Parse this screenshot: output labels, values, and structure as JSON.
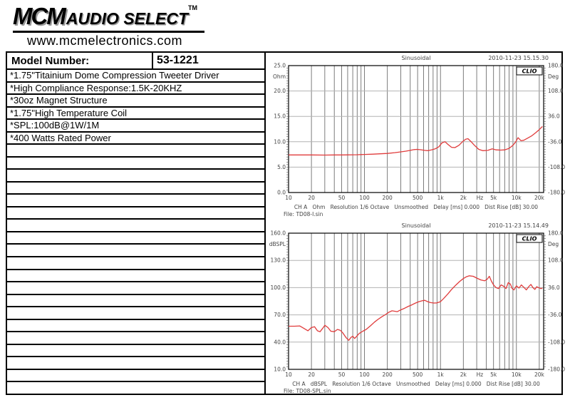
{
  "header": {
    "brand": "MCM",
    "brand_suffix": "AUDIO SELECT",
    "trademark": "TM",
    "website": "www.mcmelectronics.com"
  },
  "table": {
    "header": {
      "label": "Model Number:",
      "value": "53-1221"
    },
    "specs": [
      "*1.75\"Titainium Dome Compression Tweeter Driver",
      "*High Compliance Response:1.5K-20KHZ",
      "*30oz Magnet Structure",
      "*1.75\"High Temperature Coil",
      "*SPL:100dB@1W/1M",
      "*400 Watts Rated Power"
    ],
    "empty_row_count": 20
  },
  "chart_data": [
    {
      "id": "impedance",
      "type": "line",
      "title": "Sinusoidal",
      "timestamp": "2010-11-23 15.15.30",
      "badge": "CLIO",
      "grid": true,
      "curve_color": "#e03c3c",
      "y_left": {
        "unit": "Ohm",
        "min": 0,
        "max": 25,
        "ticks": [
          {
            "v": 25,
            "label": "25.0"
          },
          {
            "v": 20,
            "label": "20.0"
          },
          {
            "v": 15,
            "label": "15.0"
          },
          {
            "v": 10,
            "label": "10.0"
          },
          {
            "v": 5,
            "label": "5.0"
          },
          {
            "v": 0,
            "label": "0.0"
          }
        ]
      },
      "y_right": {
        "unit": "Deg",
        "ticks": [
          {
            "v": 180,
            "label": "180.0"
          },
          {
            "v": 108,
            "label": "108.0"
          },
          {
            "v": 36,
            "label": "36.0"
          },
          {
            "v": -36,
            "label": "-36.0"
          },
          {
            "v": -108,
            "label": "-108.0"
          },
          {
            "v": -180,
            "label": "-180.0"
          }
        ]
      },
      "x": {
        "scale": "log",
        "min": 10,
        "max": 22800,
        "unit": "Hz",
        "unit_position": 3300,
        "tick_values": [
          10,
          20,
          50,
          100,
          200,
          500,
          1000,
          2000,
          5000,
          10000,
          20000
        ],
        "tick_labels": [
          "10",
          "20",
          "50",
          "100",
          "200",
          "500",
          "1k",
          "2k",
          "5k",
          "10k",
          "20k"
        ]
      },
      "footer": "CH A   Ohm   Resolution 1/6 Octave   Unsmoothed   Delay [ms] 0.000   Dist Rise [dB] 30.00",
      "file_label": "File: TD08-I.sin",
      "series": [
        {
          "name": "impedance-magnitude",
          "color": "#e03c3c",
          "points": [
            [
              10,
              7.4
            ],
            [
              15,
              7.4
            ],
            [
              20,
              7.4
            ],
            [
              30,
              7.38
            ],
            [
              40,
              7.4
            ],
            [
              50,
              7.4
            ],
            [
              60,
              7.42
            ],
            [
              80,
              7.45
            ],
            [
              100,
              7.5
            ],
            [
              130,
              7.55
            ],
            [
              160,
              7.62
            ],
            [
              200,
              7.7
            ],
            [
              250,
              7.85
            ],
            [
              300,
              8.0
            ],
            [
              350,
              8.15
            ],
            [
              400,
              8.3
            ],
            [
              450,
              8.45
            ],
            [
              490,
              8.5
            ],
            [
              550,
              8.42
            ],
            [
              620,
              8.3
            ],
            [
              680,
              8.25
            ],
            [
              760,
              8.4
            ],
            [
              850,
              8.6
            ],
            [
              950,
              9.0
            ],
            [
              1050,
              9.8
            ],
            [
              1150,
              10.0
            ],
            [
              1250,
              9.5
            ],
            [
              1400,
              8.9
            ],
            [
              1550,
              8.85
            ],
            [
              1750,
              9.3
            ],
            [
              1950,
              10.0
            ],
            [
              2150,
              10.5
            ],
            [
              2300,
              10.6
            ],
            [
              2500,
              10.1
            ],
            [
              2800,
              9.3
            ],
            [
              3200,
              8.5
            ],
            [
              3600,
              8.25
            ],
            [
              4200,
              8.3
            ],
            [
              4800,
              8.6
            ],
            [
              5400,
              8.4
            ],
            [
              6200,
              8.35
            ],
            [
              7000,
              8.4
            ],
            [
              8000,
              8.7
            ],
            [
              9000,
              9.3
            ],
            [
              9800,
              10.0
            ],
            [
              10500,
              10.8
            ],
            [
              11500,
              10.2
            ],
            [
              12500,
              10.3
            ],
            [
              14000,
              10.7
            ],
            [
              16000,
              11.2
            ],
            [
              18000,
              11.8
            ],
            [
              20000,
              12.4
            ],
            [
              22000,
              13.0
            ]
          ]
        }
      ]
    },
    {
      "id": "spl",
      "type": "line",
      "title": "Sinusoidal",
      "timestamp": "2010-11-23 15.14.49",
      "badge": "CLIO",
      "grid": true,
      "curve_color": "#e03c3c",
      "y_left": {
        "unit": "dBSPL",
        "min": 10,
        "max": 160,
        "ticks": [
          {
            "v": 160,
            "label": "160.0"
          },
          {
            "v": 130,
            "label": "130.0"
          },
          {
            "v": 100,
            "label": "100.0"
          },
          {
            "v": 70,
            "label": "70.0"
          },
          {
            "v": 40,
            "label": "40.0"
          },
          {
            "v": 10,
            "label": "10.0"
          }
        ]
      },
      "y_right": {
        "unit": "Deg",
        "ticks": [
          {
            "v": 180,
            "label": "180.0"
          },
          {
            "v": 108,
            "label": "108.0"
          },
          {
            "v": 36,
            "label": "36.0"
          },
          {
            "v": -36,
            "label": "-36.0"
          },
          {
            "v": -108,
            "label": "-108.0"
          },
          {
            "v": -180,
            "label": "-180.0"
          }
        ]
      },
      "x": {
        "scale": "log",
        "min": 10,
        "max": 22800,
        "unit": "Hz",
        "unit_position": 3300,
        "tick_values": [
          10,
          20,
          50,
          100,
          200,
          500,
          1000,
          2000,
          5000,
          10000,
          20000
        ],
        "tick_labels": [
          "10",
          "20",
          "50",
          "100",
          "200",
          "500",
          "1k",
          "2k",
          "5k",
          "10k",
          "20k"
        ]
      },
      "footer": "CH A   dBSPL   Resolution 1/6 Octave   Unsmoothed   Delay [ms] 0.000   Dist Rise [dB] 30.00",
      "file_label": "File: TD08-SPL.sin",
      "series": [
        {
          "name": "spl-response",
          "color": "#e03c3c",
          "points": [
            [
              10,
              57.5
            ],
            [
              12,
              57.5
            ],
            [
              14,
              57.8
            ],
            [
              16,
              55
            ],
            [
              18,
              52.5
            ],
            [
              20,
              56
            ],
            [
              22,
              57
            ],
            [
              24,
              52.5
            ],
            [
              26,
              51.5
            ],
            [
              28,
              55
            ],
            [
              30,
              58.5
            ],
            [
              33,
              56
            ],
            [
              36,
              52
            ],
            [
              40,
              51.5
            ],
            [
              44,
              54
            ],
            [
              48,
              53
            ],
            [
              52,
              50
            ],
            [
              57,
              45
            ],
            [
              62,
              42
            ],
            [
              66,
              45
            ],
            [
              70,
              46.5
            ],
            [
              74,
              44
            ],
            [
              78,
              46
            ],
            [
              85,
              49.5
            ],
            [
              95,
              52
            ],
            [
              105,
              54
            ],
            [
              120,
              58
            ],
            [
              135,
              62
            ],
            [
              150,
              65
            ],
            [
              170,
              68
            ],
            [
              190,
              70.5
            ],
            [
              210,
              73
            ],
            [
              230,
              74.5
            ],
            [
              250,
              74
            ],
            [
              270,
              73.5
            ],
            [
              300,
              75.5
            ],
            [
              340,
              77.5
            ],
            [
              380,
              79.5
            ],
            [
              420,
              81
            ],
            [
              470,
              83
            ],
            [
              520,
              84.5
            ],
            [
              570,
              85.5
            ],
            [
              620,
              86
            ],
            [
              680,
              84.5
            ],
            [
              740,
              83.5
            ],
            [
              820,
              83
            ],
            [
              900,
              83.2
            ],
            [
              1000,
              84.5
            ],
            [
              1100,
              88
            ],
            [
              1250,
              93
            ],
            [
              1400,
              98
            ],
            [
              1600,
              103
            ],
            [
              1800,
              107
            ],
            [
              2000,
              110
            ],
            [
              2200,
              112
            ],
            [
              2400,
              113
            ],
            [
              2700,
              112.5
            ],
            [
              3000,
              110.5
            ],
            [
              3400,
              108.5
            ],
            [
              3800,
              107.5
            ],
            [
              4100,
              109
            ],
            [
              4400,
              112.5
            ],
            [
              4700,
              107
            ],
            [
              5000,
              103
            ],
            [
              5400,
              100
            ],
            [
              5800,
              99
            ],
            [
              6300,
              103
            ],
            [
              6800,
              101.5
            ],
            [
              7300,
              99
            ],
            [
              7800,
              105.5
            ],
            [
              8300,
              104
            ],
            [
              8800,
              99
            ],
            [
              9300,
              97.5
            ],
            [
              10000,
              102
            ],
            [
              10800,
              99.5
            ],
            [
              11600,
              103
            ],
            [
              12500,
              100.5
            ],
            [
              13500,
              97.5
            ],
            [
              14500,
              101
            ],
            [
              15500,
              103.5
            ],
            [
              16500,
              100
            ],
            [
              17500,
              98
            ],
            [
              18500,
              101
            ],
            [
              19500,
              100
            ],
            [
              21000,
              99
            ],
            [
              22000,
              99.5
            ]
          ]
        }
      ]
    }
  ]
}
